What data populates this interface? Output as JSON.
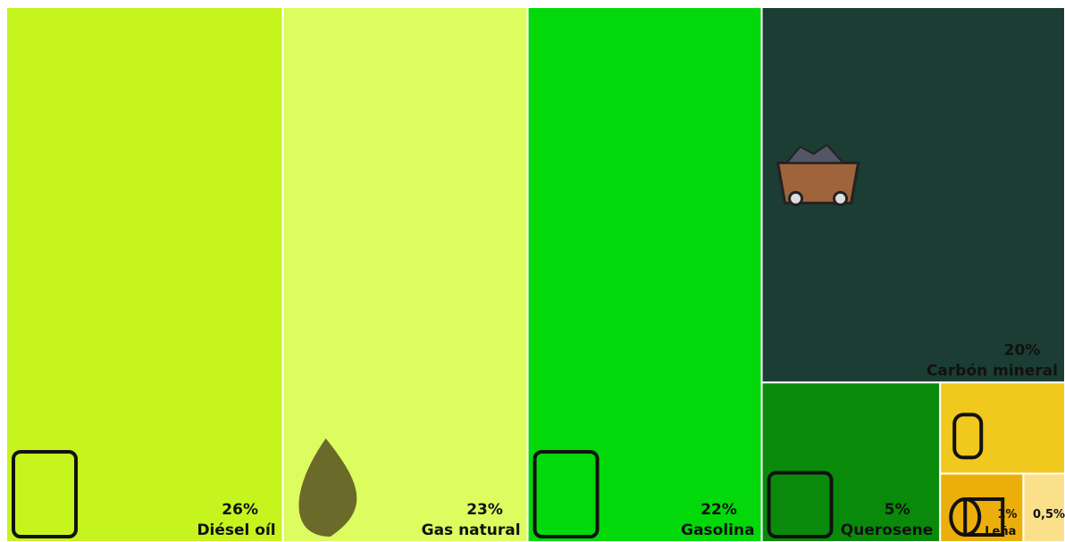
{
  "chart_data": {
    "type": "treemap",
    "categories": [
      "Diésel oíl",
      "Gas natural",
      "Gasolina",
      "Carbón mineral",
      "Querosene",
      null,
      "Leña",
      null
    ],
    "values": [
      26,
      23,
      22,
      20,
      5,
      2,
      1,
      0.5
    ],
    "value_labels": [
      "26%",
      "23%",
      "22%",
      "20%",
      "5%",
      null,
      "1%",
      "0,5%"
    ],
    "colors": [
      "#c6f41f",
      "#dcfc5f",
      "#03d80b",
      "#1b3d33",
      "#0a8a0a",
      "#f0c81e",
      "#ecae0a",
      "#fbe08c"
    ]
  }
}
